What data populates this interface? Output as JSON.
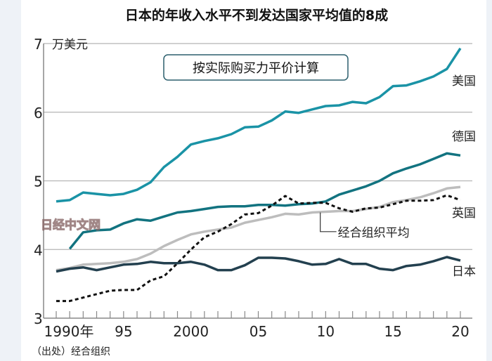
{
  "chart_data": {
    "type": "line",
    "title": "日本的年收入水平不到发达国家平均值的8成",
    "ylabel": "万美元",
    "annotation": "按实际购买力平价计算",
    "source": "（出处）经合组织",
    "watermark": "日经中文网",
    "ylim": [
      3,
      7
    ],
    "xlim": [
      1990,
      2020
    ],
    "yticks": [
      "3",
      "4",
      "5",
      "6",
      "7"
    ],
    "xticks": [
      {
        "year": 1990,
        "label": "1990年"
      },
      {
        "year": 1995,
        "label": "95"
      },
      {
        "year": 2000,
        "label": "2000"
      },
      {
        "year": 2005,
        "label": "05"
      },
      {
        "year": 2010,
        "label": "10"
      },
      {
        "year": 2015,
        "label": "15"
      },
      {
        "year": 2020,
        "label": "20"
      }
    ],
    "grid": true,
    "x_start": 1990,
    "series": [
      {
        "name": "美国",
        "color": "#1a93a6",
        "dashed": false,
        "start": 1990,
        "values": [
          4.7,
          4.72,
          4.83,
          4.81,
          4.79,
          4.81,
          4.87,
          4.98,
          5.2,
          5.35,
          5.53,
          5.58,
          5.62,
          5.68,
          5.78,
          5.79,
          5.88,
          6.01,
          5.99,
          6.04,
          6.09,
          6.1,
          6.15,
          6.13,
          6.22,
          6.38,
          6.39,
          6.45,
          6.52,
          6.63,
          6.93
        ]
      },
      {
        "name": "德国",
        "color": "#127380",
        "dashed": false,
        "start": 1991,
        "values": [
          4.01,
          4.25,
          4.28,
          4.29,
          4.38,
          4.44,
          4.42,
          4.48,
          4.54,
          4.56,
          4.59,
          4.62,
          4.63,
          4.63,
          4.65,
          4.65,
          4.64,
          4.66,
          4.67,
          4.7,
          4.8,
          4.86,
          4.92,
          5.0,
          5.11,
          5.18,
          5.24,
          5.32,
          5.4,
          5.37
        ]
      },
      {
        "name": "经合组织平均",
        "color": "#bdbdbd",
        "dashed": false,
        "start": 1990,
        "values": [
          3.7,
          3.73,
          3.78,
          3.79,
          3.8,
          3.82,
          3.86,
          3.94,
          4.05,
          4.14,
          4.22,
          4.26,
          4.29,
          4.32,
          4.39,
          4.43,
          4.47,
          4.52,
          4.51,
          4.54,
          4.55,
          4.56,
          4.56,
          4.59,
          4.62,
          4.69,
          4.72,
          4.76,
          4.82,
          4.89,
          4.91
        ]
      },
      {
        "name": "英国",
        "color": "#111111",
        "dashed": true,
        "start": 1990,
        "values": [
          3.25,
          3.25,
          3.3,
          3.35,
          3.4,
          3.41,
          3.41,
          3.55,
          3.61,
          3.8,
          4.0,
          4.18,
          4.26,
          4.37,
          4.51,
          4.53,
          4.64,
          4.78,
          4.67,
          4.68,
          4.68,
          4.6,
          4.55,
          4.6,
          4.61,
          4.66,
          4.71,
          4.71,
          4.72,
          4.79,
          4.72
        ]
      },
      {
        "name": "日本",
        "color": "#23404f",
        "dashed": false,
        "start": 1990,
        "values": [
          3.68,
          3.72,
          3.74,
          3.7,
          3.74,
          3.78,
          3.79,
          3.82,
          3.8,
          3.8,
          3.82,
          3.78,
          3.7,
          3.7,
          3.77,
          3.88,
          3.88,
          3.87,
          3.83,
          3.78,
          3.79,
          3.86,
          3.79,
          3.79,
          3.72,
          3.7,
          3.76,
          3.78,
          3.83,
          3.89,
          3.84
        ]
      }
    ]
  }
}
